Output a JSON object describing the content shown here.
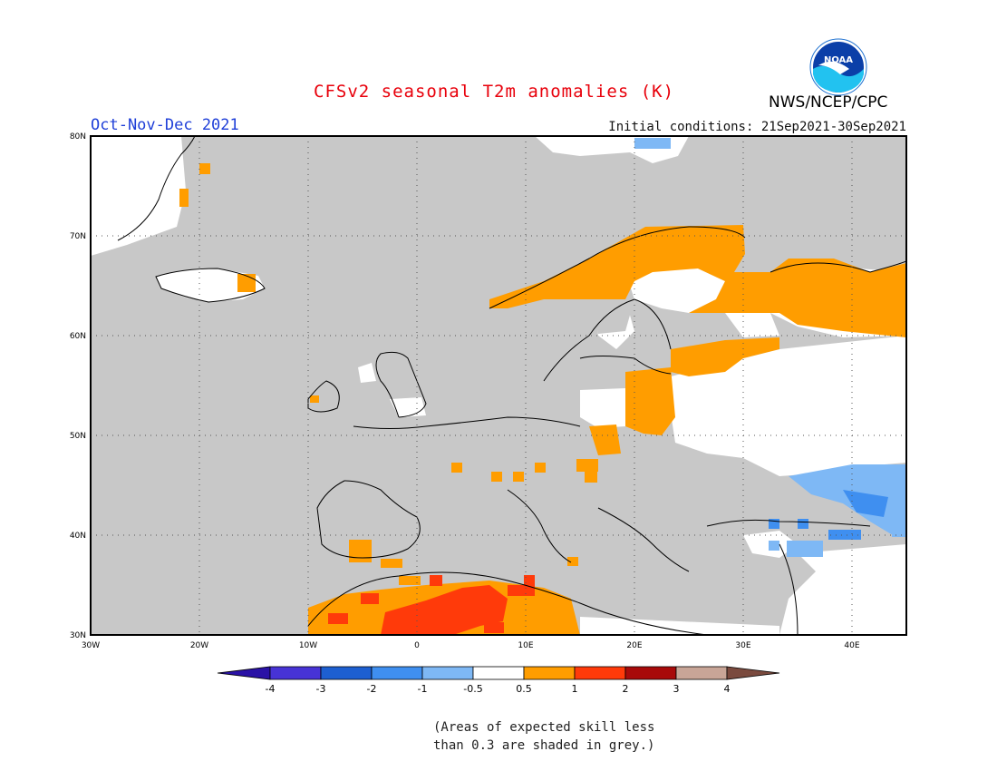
{
  "title": "CFSv2 seasonal T2m anomalies (K)",
  "season": "Oct-Nov-Dec 2021",
  "initial_conditions": "Initial conditions: 21Sep2021-30Sep2021",
  "agency": "NWS/NCEP/CPC",
  "logo_text": "NOAA",
  "lat_ticks": [
    "80N",
    "70N",
    "60N",
    "50N",
    "40N",
    "30N"
  ],
  "lon_ticks": [
    "30W",
    "20W",
    "10W",
    "0",
    "10E",
    "20E",
    "30E",
    "40E"
  ],
  "colorbar": {
    "labels": [
      "-4",
      "-3",
      "-2",
      "-1",
      "-0.5",
      "0.5",
      "1",
      "2",
      "3",
      "4"
    ],
    "colors": [
      "#2a12a6",
      "#4733d6",
      "#1d5fd1",
      "#3f8ff0",
      "#7eb8f5",
      "#ffffff",
      "#ff9d00",
      "#ff3a0a",
      "#a80a0a",
      "#c8a597",
      "#7a4a3e"
    ]
  },
  "note_lines": [
    "(Areas of expected skill less",
    "than 0.3 are shaded in grey.)"
  ],
  "colors": {
    "grey": "#c8c8c8",
    "title_red": "#e8000b",
    "season_blue": "#1f3fd8"
  }
}
